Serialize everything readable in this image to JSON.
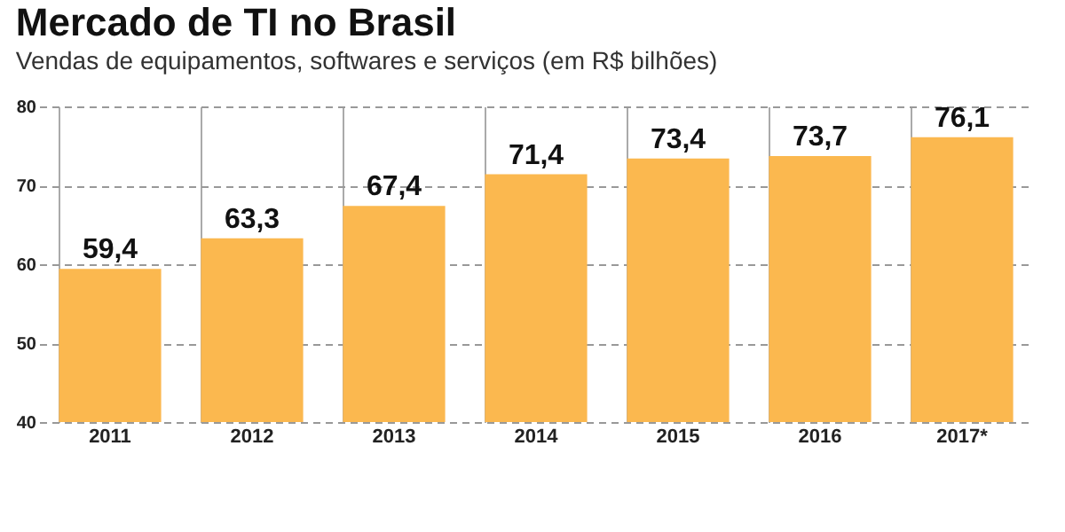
{
  "chart_data": {
    "type": "bar",
    "title": "Mercado de TI no Brasil",
    "subtitle": "Vendas de equipamentos, softwares e serviços (em R$ bilhões)",
    "categories": [
      "2011",
      "2012",
      "2013",
      "2014",
      "2015",
      "2016",
      "2017*"
    ],
    "values": [
      59.4,
      63.3,
      67.4,
      71.4,
      73.4,
      73.7,
      76.1
    ],
    "value_labels": [
      "59,4",
      "63,3",
      "67,4",
      "71,4",
      "73,4",
      "73,7",
      "76,1"
    ],
    "color": "#fbb84f",
    "ylim": [
      40,
      80
    ],
    "yticks": [
      40,
      50,
      60,
      70,
      80
    ],
    "grid": true
  }
}
